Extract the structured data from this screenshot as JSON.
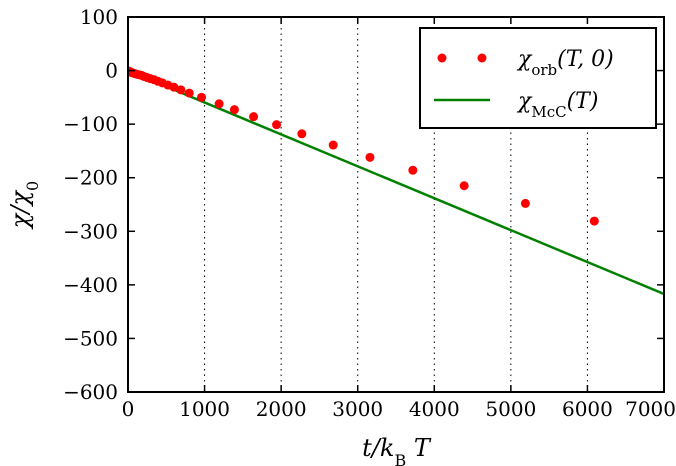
{
  "chart_data": {
    "type": "scatter",
    "xlabel": "t/k_B T",
    "ylabel": "χ/χ_0",
    "xlim": [
      0,
      7000
    ],
    "ylim": [
      -600,
      100
    ],
    "xticks": [
      0,
      1000,
      2000,
      3000,
      4000,
      5000,
      6000,
      7000
    ],
    "xtick_labels": [
      "0",
      "1000",
      "2000",
      "3000",
      "4000",
      "5000",
      "6000",
      "7000"
    ],
    "yticks": [
      -600,
      -500,
      -400,
      -300,
      -200,
      -100,
      0,
      100
    ],
    "ytick_labels": [
      "−600",
      "−500",
      "−400",
      "−300",
      "−200",
      "−100",
      "0",
      "100"
    ],
    "grid": "vertical-dotted",
    "legend_position": "top-right",
    "series": [
      {
        "name": "χ_orb(T,0)",
        "type": "scatter",
        "color": "#ff0000",
        "x": [
          5,
          15,
          25,
          40,
          55,
          75,
          95,
          120,
          150,
          180,
          210,
          250,
          290,
          340,
          390,
          450,
          520,
          600,
          690,
          800,
          960,
          1190,
          1390,
          1640,
          1940,
          2270,
          2680,
          3160,
          3720,
          4390,
          5190,
          6090
        ],
        "y": [
          -0.8,
          -1.5,
          -2,
          -3,
          -4,
          -5,
          -6,
          -7,
          -8,
          -9,
          -11,
          -13,
          -15,
          -17,
          -20,
          -23,
          -27,
          -31,
          -36,
          -42,
          -50,
          -62,
          -73,
          -86,
          -101,
          -118,
          -139,
          -162,
          -186,
          -215,
          -248,
          -281
        ]
      },
      {
        "name": "χ_McC(T)",
        "type": "line",
        "color": "#008000",
        "x": [
          0,
          7000
        ],
        "y": [
          0,
          -417
        ]
      }
    ],
    "legend": {
      "entries": [
        {
          "label_main": "χ",
          "label_sub": "orb",
          "label_tail": "(T, 0)"
        },
        {
          "label_main": "χ",
          "label_sub": "McC",
          "label_tail": "(T)"
        }
      ]
    }
  }
}
